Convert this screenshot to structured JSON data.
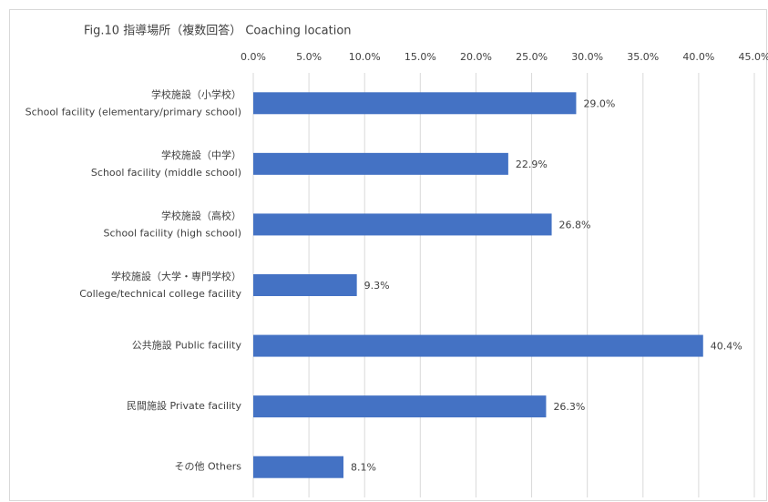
{
  "chart_data": {
    "type": "bar",
    "orientation": "horizontal",
    "title": "Fig.10 指導場所（複数回答）  Coaching location",
    "categories": [
      [
        "学校施設（小学校）",
        "School facility (elementary/primary school)"
      ],
      [
        "学校施設（中学）",
        "School facility (middle school)"
      ],
      [
        "学校施設（高校）",
        "School facility (high school)"
      ],
      [
        "学校施設（大学・専門学校）",
        "College/technical college facility"
      ],
      [
        "公共施設 Public facility"
      ],
      [
        "民間施設 Private facility"
      ],
      [
        "その他 Others"
      ]
    ],
    "values": [
      29.0,
      22.9,
      26.8,
      9.3,
      40.4,
      26.3,
      8.1
    ],
    "value_labels": [
      "29.0%",
      "22.9%",
      "26.8%",
      "9.3%",
      "40.4%",
      "26.3%",
      "8.1%"
    ],
    "color": "#4472c4",
    "xlim": [
      0,
      45
    ],
    "xticks": [
      {
        "value": 0,
        "label": "0.0%"
      },
      {
        "value": 5,
        "label": "5.0%"
      },
      {
        "value": 10,
        "label": "10.0%"
      },
      {
        "value": 15,
        "label": "15.0%"
      },
      {
        "value": 20,
        "label": "20.0%"
      },
      {
        "value": 25,
        "label": "25.0%"
      },
      {
        "value": 30,
        "label": "30.0%"
      },
      {
        "value": 35,
        "label": "35.0%"
      },
      {
        "value": 40,
        "label": "40.0%"
      },
      {
        "value": 45,
        "label": "45.0%"
      }
    ],
    "grid": true
  }
}
